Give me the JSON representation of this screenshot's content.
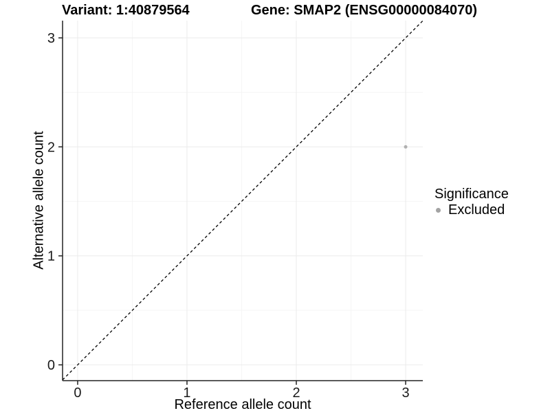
{
  "header": {
    "variant_title": "Variant: 1:40879564",
    "gene_title": "Gene: SMAP2 (ENSG00000084070)"
  },
  "chart_data": {
    "type": "scatter",
    "title_left": "Variant: 1:40879564",
    "title_right": "Gene: SMAP2 (ENSG00000084070)",
    "xlabel": "Reference allele count",
    "ylabel": "Alternative allele count",
    "xlim": [
      -0.138,
      3.157
    ],
    "ylim": [
      -0.145,
      3.158
    ],
    "x_ticks": [
      0,
      1,
      2,
      3
    ],
    "y_ticks": [
      0,
      1,
      2,
      3
    ],
    "x_minor_ticks": [
      0.5,
      1.5,
      2.5
    ],
    "y_minor_ticks": [
      0.5,
      1.5,
      2.5
    ],
    "grid": true,
    "series": [
      {
        "name": "Excluded",
        "color": "#b0b0b0",
        "marker": "circle",
        "points": [
          {
            "x": 3,
            "y": 2
          }
        ]
      }
    ],
    "reference_line": {
      "type": "identity",
      "slope": 1,
      "intercept": 0,
      "linetype": "dashed",
      "color": "#000000"
    },
    "legend": {
      "title": "Significance",
      "position": "right",
      "items": [
        {
          "label": "Excluded",
          "color": "#a3a3a3",
          "marker": "circle"
        }
      ]
    }
  },
  "style": {
    "background": "#ffffff",
    "axis_color": "#222222",
    "grid_major_color": "#ebebeb",
    "grid_minor_color": "#f5f5f5",
    "tick_label_color": "#1a1a1a",
    "point_color": "#b0b0b0",
    "tick_label_size": 20
  }
}
